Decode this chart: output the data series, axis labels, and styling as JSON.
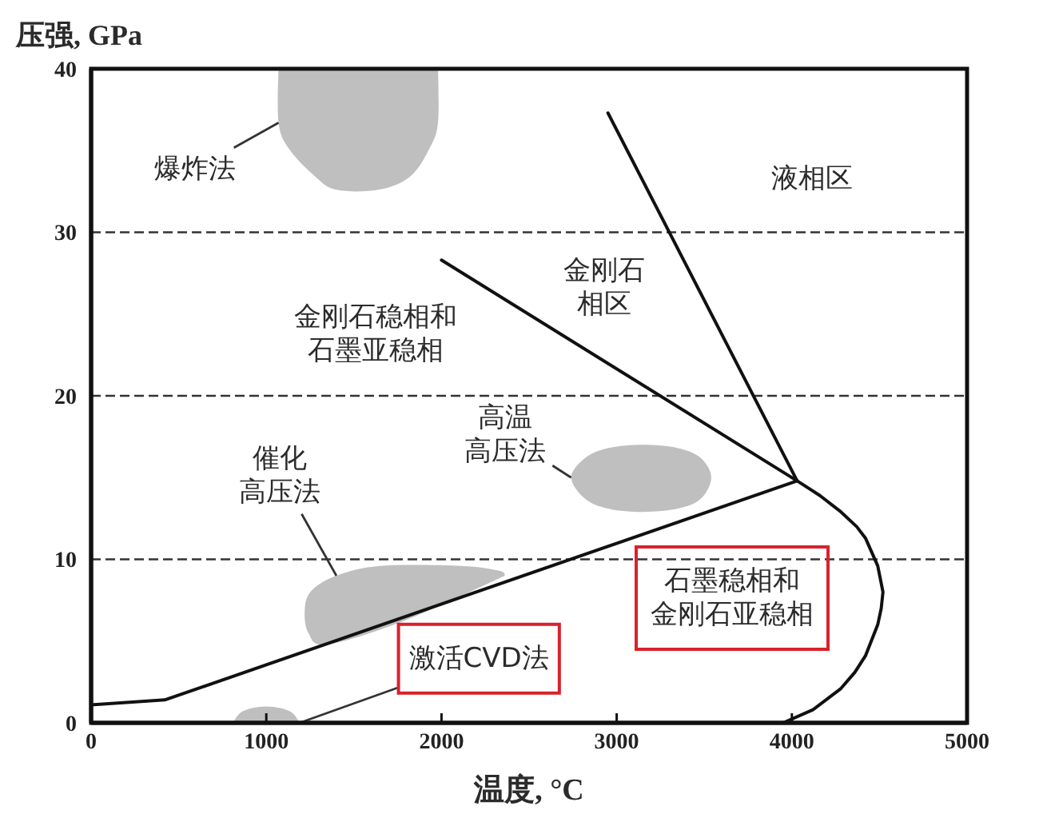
{
  "chart_data": {
    "type": "line",
    "xlabel": "温度, °C",
    "ylabel": "压强, GPa",
    "xlim": [
      0,
      5000
    ],
    "xticks": [
      0,
      1000,
      2000,
      3000,
      4000,
      5000
    ],
    "ylim": [
      0,
      40
    ],
    "yticks": [
      0,
      10,
      20,
      30,
      40
    ],
    "grid": "y",
    "marker": "none",
    "series": [
      {
        "color": "#111111",
        "x": [
          0,
          420,
          4030
        ],
        "values": [
          1.1,
          1.4,
          14.8
        ]
      },
      {
        "color": "#111111",
        "x": [
          4030,
          2950
        ],
        "values": [
          14.8,
          37.3
        ]
      },
      {
        "color": "#111111",
        "x": [
          2000,
          4030,
          4160,
          4280,
          4370,
          4420,
          4490,
          4520,
          4510,
          4490,
          4420,
          4360,
          4280,
          4120,
          3950
        ],
        "values": [
          28.3,
          14.8,
          13.9,
          12.9,
          12.0,
          11.3,
          9.6,
          8.0,
          7.0,
          6.0,
          4.1,
          3.1,
          2.1,
          0.8,
          0
        ]
      },
      {
        "type": "area",
        "name": "爆炸法",
        "color": "#bfbfbf",
        "x": [
          1070,
          1070,
          1130,
          1280,
          1400,
          1640,
          1820,
          1930,
          1980,
          1980
        ],
        "values": [
          40,
          36.7,
          35.1,
          33.4,
          32.6,
          32.6,
          33.4,
          35.1,
          36.7,
          40
        ]
      },
      {
        "type": "area",
        "name": "高温高压法",
        "color": "#bfbfbf",
        "x": [
          2740,
          2820,
          2950,
          3150,
          3350,
          3480,
          3540,
          3480,
          3350,
          3150,
          2950,
          2820
        ],
        "values": [
          15.0,
          16.2,
          16.8,
          17.0,
          16.8,
          16.2,
          15.0,
          13.7,
          13.1,
          12.9,
          13.1,
          13.7
        ]
      },
      {
        "type": "area",
        "name": "催化高压法",
        "color": "#bfbfbf",
        "x": [
          1220,
          1260,
          1400,
          1650,
          2110,
          2330,
          2360,
          1800,
          1350,
          1240
        ],
        "values": [
          7.0,
          8.1,
          9.0,
          9.6,
          9.6,
          9.3,
          9.0,
          6.3,
          4.8,
          5.5
        ]
      },
      {
        "type": "area",
        "name": "激活CVD法",
        "color": "#bfbfbf",
        "x": [
          810,
          850,
          920,
          1000,
          1080,
          1150,
          1190
        ],
        "values": [
          0,
          0.6,
          0.9,
          1.0,
          0.9,
          0.6,
          0
        ]
      }
    ],
    "annotations": [
      "液相区",
      "金刚石相区",
      "金刚石稳相和石墨亚稳相",
      "石墨稳相和金刚石亚稳相"
    ]
  }
}
